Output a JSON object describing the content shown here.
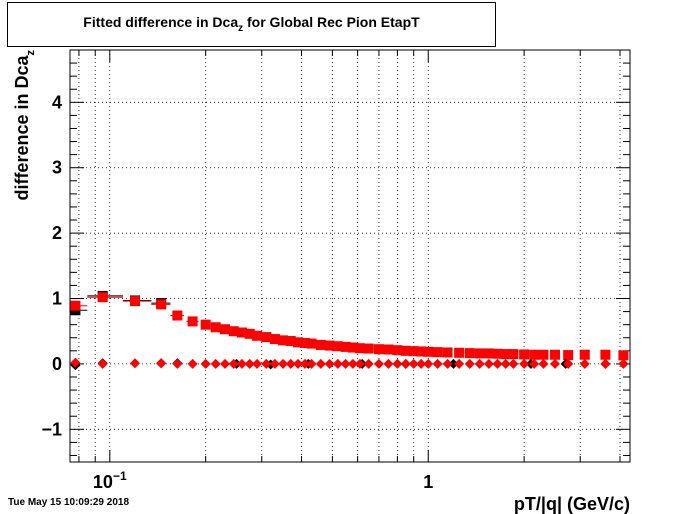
{
  "chart_data": {
    "type": "scatter",
    "title": "Fitted difference in Dca",
    "title_sub": "z",
    "title_rest": " for Global Rec Pion EtapT",
    "xlabel": "pT/|q| (GeV/c)",
    "ylabel": "difference in Dca",
    "ylabel_sub": "z",
    "xscale": "log",
    "xlim": [
      0.075,
      4.3
    ],
    "ylim": [
      -1.5,
      4.8
    ],
    "grid": true,
    "x_ticks": [
      {
        "value": 0.1,
        "base": "10",
        "exp": "−1"
      },
      {
        "value": 1,
        "base": "1",
        "exp": ""
      }
    ],
    "y_ticks": [
      {
        "value": -1,
        "label": "−1"
      },
      {
        "value": 0,
        "label": "0"
      },
      {
        "value": 1,
        "label": "1"
      },
      {
        "value": 2,
        "label": "2"
      },
      {
        "value": 3,
        "label": "3"
      },
      {
        "value": 4,
        "label": "4"
      }
    ],
    "series": [
      {
        "marker": "square",
        "color": "#000000",
        "x": [
          0.078,
          0.095,
          0.12,
          0.145
        ],
        "y": [
          0.82,
          1.04,
          0.97,
          0.93
        ],
        "xerr_lo": [
          0.003,
          0.01,
          0.01,
          0.01
        ],
        "xerr_hi": [
          0.007,
          0.015,
          0.015,
          0.01
        ]
      },
      {
        "marker": "square",
        "color": "#ff0000",
        "x": [
          0.078,
          0.095,
          0.12,
          0.145,
          0.163,
          0.182,
          0.2,
          0.215,
          0.23,
          0.245,
          0.26,
          0.275,
          0.29,
          0.31,
          0.33,
          0.35,
          0.37,
          0.39,
          0.41,
          0.43,
          0.46,
          0.49,
          0.52,
          0.55,
          0.58,
          0.61,
          0.65,
          0.7,
          0.75,
          0.8,
          0.85,
          0.9,
          0.95,
          1.0,
          1.07,
          1.15,
          1.25,
          1.35,
          1.45,
          1.55,
          1.65,
          1.75,
          1.85,
          2.0,
          2.15,
          2.3,
          2.5,
          2.75,
          3.1,
          3.6,
          4.1
        ],
        "y": [
          0.89,
          1.02,
          0.96,
          0.91,
          0.74,
          0.65,
          0.6,
          0.56,
          0.53,
          0.5,
          0.48,
          0.46,
          0.43,
          0.41,
          0.38,
          0.36,
          0.35,
          0.33,
          0.32,
          0.31,
          0.29,
          0.28,
          0.27,
          0.26,
          0.25,
          0.24,
          0.235,
          0.225,
          0.22,
          0.21,
          0.2,
          0.195,
          0.19,
          0.185,
          0.18,
          0.175,
          0.17,
          0.165,
          0.16,
          0.16,
          0.155,
          0.15,
          0.15,
          0.145,
          0.14,
          0.14,
          0.14,
          0.135,
          0.14,
          0.14,
          0.13
        ],
        "xerr_lo": [
          0.003,
          0.01,
          0.01,
          0.01,
          0.008,
          0.008
        ],
        "xerr_hi": [
          0.007,
          0.015,
          0.015,
          0.01,
          0.008,
          0.008
        ]
      },
      {
        "marker": "diamond",
        "color": "#000000",
        "x": [
          0.078,
          0.095,
          0.145,
          0.163,
          0.25,
          0.32,
          0.42,
          0.62,
          0.85,
          1.2,
          2.1,
          2.7,
          3.6
        ],
        "y": [
          -0.02,
          0.01,
          0.01,
          0.01,
          0.0,
          -0.01,
          0.0,
          0.0,
          0.0,
          0.0,
          0.0,
          0.0,
          0.0
        ]
      },
      {
        "marker": "diamond",
        "color": "#ff0000",
        "x": [
          0.078,
          0.095,
          0.12,
          0.145,
          0.163,
          0.182,
          0.2,
          0.215,
          0.23,
          0.245,
          0.26,
          0.275,
          0.29,
          0.31,
          0.33,
          0.35,
          0.37,
          0.39,
          0.41,
          0.43,
          0.46,
          0.49,
          0.52,
          0.55,
          0.58,
          0.61,
          0.65,
          0.7,
          0.75,
          0.8,
          0.85,
          0.9,
          0.95,
          1.0,
          1.07,
          1.15,
          1.25,
          1.35,
          1.45,
          1.55,
          1.65,
          1.75,
          1.85,
          2.0,
          2.15,
          2.3,
          2.5,
          2.75,
          3.1,
          3.6,
          4.1
        ],
        "y": [
          0.02,
          0.0,
          0.01,
          0.01,
          0.0,
          0.0,
          0.0,
          0.0,
          0.0,
          0.0,
          0.0,
          0.0,
          0.0,
          0.0,
          0.0,
          0.0,
          0.0,
          0.0,
          0.0,
          0.0,
          0.0,
          0.0,
          0.0,
          0.0,
          0.0,
          0.0,
          0.0,
          0.0,
          0.0,
          0.0,
          0.0,
          0.0,
          0.0,
          0.0,
          0.0,
          0.0,
          0.0,
          0.0,
          0.0,
          0.0,
          0.0,
          0.0,
          0.0,
          0.0,
          0.0,
          0.0,
          0.0,
          0.0,
          0.0,
          0.0,
          0.0
        ]
      }
    ]
  },
  "footer": "Tue May 15 10:09:29 2018"
}
